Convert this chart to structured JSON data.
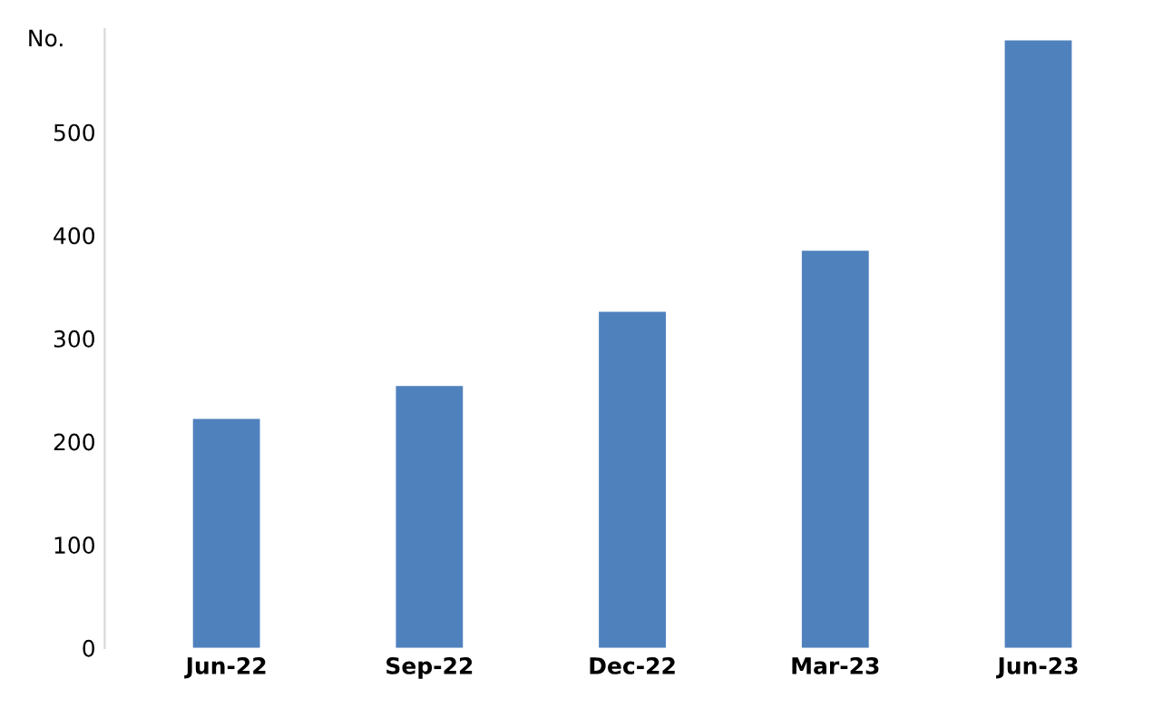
{
  "chart_data": {
    "type": "bar",
    "ylabel": "No.",
    "categories": [
      "Jun-22",
      "Sep-22",
      "Dec-22",
      "Mar-23",
      "Jun-23"
    ],
    "values": [
      222,
      254,
      326,
      385,
      589
    ],
    "color": "#4f81bd",
    "ylim": [
      0,
      600
    ],
    "yticks": [
      0,
      100,
      200,
      300,
      400,
      500
    ],
    "grid": false
  }
}
